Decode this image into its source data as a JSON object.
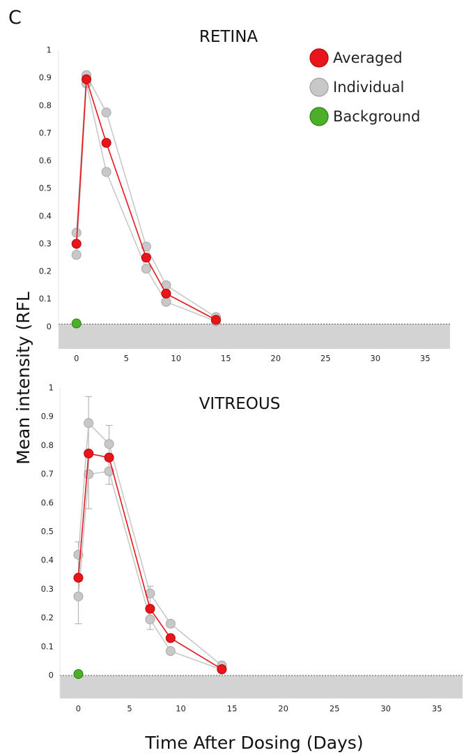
{
  "panel_label": "C",
  "xlabel": "Time After Dosing (Days)",
  "ylabel": "Mean intensity (RFL",
  "legend": {
    "placement": "top-right",
    "items": [
      {
        "label": "Averaged",
        "color": "#e8151b"
      },
      {
        "label": "Individual",
        "color": "#c8c8c8"
      },
      {
        "label": "Background",
        "color": "#4caf2a"
      }
    ]
  },
  "chart_data": [
    {
      "type": "line",
      "title": "RETINA",
      "x_ticks": [
        "0",
        "5",
        "10",
        "15",
        "20",
        "25",
        "30",
        "35"
      ],
      "y_ticks": [
        "0",
        "0.1",
        "0.2",
        "0.3",
        "0.4",
        "0.5",
        "0.6",
        "0.7",
        "0.8",
        "0.9",
        "1"
      ],
      "xlim": [
        -1.8,
        37.5
      ],
      "ylim": [
        -0.08,
        1.0
      ],
      "grid": false,
      "baseline_band": [
        -0.08,
        0.01
      ],
      "series": [
        {
          "name": "Individual",
          "style": "individual",
          "x": [
            0,
            1,
            3,
            7,
            9,
            14
          ],
          "y": [
            0.34,
            0.91,
            0.775,
            0.29,
            0.15,
            0.035
          ]
        },
        {
          "name": "Individual",
          "style": "individual",
          "x": [
            0,
            1,
            3,
            7,
            9,
            14
          ],
          "y": [
            0.26,
            0.88,
            0.56,
            0.21,
            0.09,
            0.02
          ]
        },
        {
          "name": "Averaged",
          "style": "averaged",
          "x": [
            0,
            1,
            3,
            7,
            9,
            14
          ],
          "y": [
            0.3,
            0.895,
            0.665,
            0.25,
            0.12,
            0.025
          ]
        },
        {
          "name": "Background",
          "style": "background",
          "x": [
            0
          ],
          "y": [
            0.012
          ]
        }
      ]
    },
    {
      "type": "line",
      "title": "VITREOUS",
      "x_ticks": [
        "0",
        "5",
        "10",
        "15",
        "20",
        "25",
        "30",
        "35"
      ],
      "y_ticks": [
        "0",
        "0.1",
        "0.2",
        "0.3",
        "0.4",
        "0.5",
        "0.6",
        "0.7",
        "0.8",
        "0.9",
        "1"
      ],
      "xlim": [
        -1.8,
        37.5
      ],
      "ylim": [
        -0.08,
        1.0
      ],
      "grid": false,
      "baseline_band": [
        -0.08,
        0.0
      ],
      "error_bars": [
        {
          "x": 0,
          "low": 0.18,
          "high": 0.465
        },
        {
          "x": 1,
          "low": 0.58,
          "high": 0.97
        },
        {
          "x": 3,
          "low": 0.665,
          "high": 0.87
        },
        {
          "x": 7,
          "low": 0.16,
          "high": 0.31
        }
      ],
      "series": [
        {
          "name": "Individual",
          "style": "individual",
          "x": [
            0,
            1,
            3,
            7,
            9,
            14
          ],
          "y": [
            0.42,
            0.878,
            0.805,
            0.285,
            0.18,
            0.035
          ]
        },
        {
          "name": "Individual",
          "style": "individual",
          "x": [
            0,
            1,
            3,
            7,
            9,
            14
          ],
          "y": [
            0.275,
            0.7,
            0.71,
            0.195,
            0.085,
            0.02
          ]
        },
        {
          "name": "Averaged",
          "style": "averaged",
          "x": [
            0,
            1,
            3,
            7,
            9,
            14
          ],
          "y": [
            0.34,
            0.772,
            0.758,
            0.232,
            0.13,
            0.022
          ]
        },
        {
          "name": "Background",
          "style": "background",
          "x": [
            0
          ],
          "y": [
            0.005
          ]
        }
      ]
    }
  ]
}
